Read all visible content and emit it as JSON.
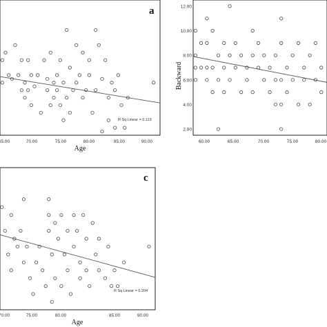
{
  "chart_data": [
    {
      "type": "scatter",
      "panel": "a",
      "xlabel": "Age",
      "ylabel": "",
      "x_ticks": [
        "65.00",
        "70.00",
        "75.00",
        "80.00",
        "85.00",
        "90.00"
      ],
      "y_ticks": [],
      "xlim": [
        64,
        91
      ],
      "ylim": [
        0,
        18
      ],
      "annotation": "R Sq Linear = 0.113",
      "fit_line": {
        "x": [
          64,
          91
        ],
        "y": [
          7.8,
          4.3
        ]
      },
      "points": [
        {
          "x": 65.5,
          "y": 16.5
        },
        {
          "x": 65.0,
          "y": 8.0
        },
        {
          "x": 66.0,
          "y": 8.0
        },
        {
          "x": 66.5,
          "y": 10.0
        },
        {
          "x": 66.5,
          "y": 7.0
        },
        {
          "x": 67.0,
          "y": 11.0
        },
        {
          "x": 67.5,
          "y": 8.0
        },
        {
          "x": 68.0,
          "y": 7.5
        },
        {
          "x": 68.5,
          "y": 12.0
        },
        {
          "x": 69.0,
          "y": 8.0
        },
        {
          "x": 69.5,
          "y": 10.0
        },
        {
          "x": 69.5,
          "y": 6.0
        },
        {
          "x": 70.0,
          "y": 7.0
        },
        {
          "x": 70.0,
          "y": 5.0
        },
        {
          "x": 70.5,
          "y": 10.0
        },
        {
          "x": 70.5,
          "y": 6.0
        },
        {
          "x": 71.0,
          "y": 8.0
        },
        {
          "x": 71.0,
          "y": 4.0
        },
        {
          "x": 71.5,
          "y": 6.5
        },
        {
          "x": 72.0,
          "y": 8.0
        },
        {
          "x": 72.5,
          "y": 3.0
        },
        {
          "x": 73.0,
          "y": 10.0
        },
        {
          "x": 73.5,
          "y": 7.5
        },
        {
          "x": 73.5,
          "y": 6.0
        },
        {
          "x": 74.0,
          "y": 11.0
        },
        {
          "x": 74.0,
          "y": 4.0
        },
        {
          "x": 74.5,
          "y": 7.0
        },
        {
          "x": 74.5,
          "y": 5.0
        },
        {
          "x": 75.0,
          "y": 8.0
        },
        {
          "x": 75.0,
          "y": 6.0
        },
        {
          "x": 75.5,
          "y": 10.0
        },
        {
          "x": 75.5,
          "y": 4.0
        },
        {
          "x": 76.0,
          "y": 7.0
        },
        {
          "x": 76.0,
          "y": 2.0
        },
        {
          "x": 76.5,
          "y": 14.0
        },
        {
          "x": 76.5,
          "y": 5.0
        },
        {
          "x": 77.0,
          "y": 9.0
        },
        {
          "x": 77.0,
          "y": 3.0
        },
        {
          "x": 77.5,
          "y": 6.0
        },
        {
          "x": 78.0,
          "y": 7.0
        },
        {
          "x": 78.0,
          "y": 12.0
        },
        {
          "x": 78.5,
          "y": 8.0
        },
        {
          "x": 79.0,
          "y": 5.0
        },
        {
          "x": 79.0,
          "y": 11.0
        },
        {
          "x": 79.5,
          "y": 6.0
        },
        {
          "x": 80.0,
          "y": 8.0
        },
        {
          "x": 80.0,
          "y": 10.0
        },
        {
          "x": 80.5,
          "y": 3.0
        },
        {
          "x": 81.0,
          "y": 14.0
        },
        {
          "x": 81.0,
          "y": 6.0
        },
        {
          "x": 81.5,
          "y": 12.0
        },
        {
          "x": 82.0,
          "y": 7.5
        },
        {
          "x": 82.0,
          "y": 0.5
        },
        {
          "x": 82.5,
          "y": 10.0
        },
        {
          "x": 83.0,
          "y": 5.0
        },
        {
          "x": 83.0,
          "y": 2.0
        },
        {
          "x": 83.5,
          "y": 7.0
        },
        {
          "x": 84.0,
          "y": 6.0
        },
        {
          "x": 84.0,
          "y": 1.0
        },
        {
          "x": 84.5,
          "y": 8.0
        },
        {
          "x": 85.0,
          "y": 4.0
        },
        {
          "x": 85.5,
          "y": 1.0
        },
        {
          "x": 86.0,
          "y": 5.0
        },
        {
          "x": 90.0,
          "y": 7.0
        }
      ]
    },
    {
      "type": "scatter",
      "panel": "b",
      "xlabel": "",
      "ylabel": "Backward",
      "x_ticks": [
        "60.00",
        "65.00",
        "70.00",
        "75.00",
        "80.00"
      ],
      "y_ticks": [
        "2.00",
        "4.00",
        "6.00",
        "8.00",
        "10.00",
        "12.00"
      ],
      "xlim": [
        59,
        83
      ],
      "ylim": [
        1.5,
        12.5
      ],
      "annotation": "",
      "fit_line": {
        "x": [
          59,
          83
        ],
        "y": [
          7.9,
          5.8
        ]
      },
      "points": [
        {
          "x": 60.0,
          "y": 6.0
        },
        {
          "x": 60.0,
          "y": 7.0
        },
        {
          "x": 60.0,
          "y": 8.0
        },
        {
          "x": 60.0,
          "y": 10.0
        },
        {
          "x": 61.0,
          "y": 7.0
        },
        {
          "x": 61.0,
          "y": 9.0
        },
        {
          "x": 62.0,
          "y": 6.0
        },
        {
          "x": 62.0,
          "y": 7.0
        },
        {
          "x": 62.0,
          "y": 9.0
        },
        {
          "x": 62.0,
          "y": 11.0
        },
        {
          "x": 63.0,
          "y": 5.0
        },
        {
          "x": 63.0,
          "y": 7.0
        },
        {
          "x": 63.0,
          "y": 10.0
        },
        {
          "x": 64.0,
          "y": 2.0
        },
        {
          "x": 64.0,
          "y": 6.0
        },
        {
          "x": 64.0,
          "y": 8.0
        },
        {
          "x": 65.0,
          "y": 5.0
        },
        {
          "x": 65.0,
          "y": 7.0
        },
        {
          "x": 65.0,
          "y": 9.0
        },
        {
          "x": 66.0,
          "y": 8.0
        },
        {
          "x": 66.0,
          "y": 12.0
        },
        {
          "x": 66.0,
          "y": 6.0
        },
        {
          "x": 67.0,
          "y": 7.0
        },
        {
          "x": 67.0,
          "y": 9.0
        },
        {
          "x": 68.0,
          "y": 5.0
        },
        {
          "x": 68.0,
          "y": 8.0
        },
        {
          "x": 69.0,
          "y": 7.0
        },
        {
          "x": 69.0,
          "y": 6.0
        },
        {
          "x": 70.0,
          "y": 10.0
        },
        {
          "x": 70.0,
          "y": 8.0
        },
        {
          "x": 70.0,
          "y": 5.0
        },
        {
          "x": 71.0,
          "y": 7.0
        },
        {
          "x": 71.0,
          "y": 9.0
        },
        {
          "x": 72.0,
          "y": 6.0
        },
        {
          "x": 72.0,
          "y": 8.0
        },
        {
          "x": 73.0,
          "y": 7.0
        },
        {
          "x": 73.0,
          "y": 5.0
        },
        {
          "x": 74.0,
          "y": 4.0
        },
        {
          "x": 74.0,
          "y": 6.0
        },
        {
          "x": 74.0,
          "y": 8.0
        },
        {
          "x": 75.0,
          "y": 11.0
        },
        {
          "x": 75.0,
          "y": 9.0
        },
        {
          "x": 75.0,
          "y": 6.0
        },
        {
          "x": 75.0,
          "y": 4.0
        },
        {
          "x": 75.0,
          "y": 2.0
        },
        {
          "x": 76.0,
          "y": 7.0
        },
        {
          "x": 76.0,
          "y": 5.0
        },
        {
          "x": 77.0,
          "y": 8.0
        },
        {
          "x": 77.0,
          "y": 6.0
        },
        {
          "x": 78.0,
          "y": 9.0
        },
        {
          "x": 78.0,
          "y": 4.0
        },
        {
          "x": 79.0,
          "y": 7.0
        },
        {
          "x": 79.0,
          "y": 6.0
        },
        {
          "x": 80.0,
          "y": 8.0
        },
        {
          "x": 80.0,
          "y": 4.0
        },
        {
          "x": 81.0,
          "y": 9.0
        },
        {
          "x": 81.0,
          "y": 6.0
        },
        {
          "x": 82.0,
          "y": 7.0
        },
        {
          "x": 82.0,
          "y": 5.0
        }
      ]
    },
    {
      "type": "scatter",
      "panel": "c",
      "xlabel": "Age",
      "ylabel": "",
      "x_ticks": [
        "70.00",
        "75.00",
        "80.00",
        "85.00",
        "90.00"
      ],
      "y_ticks": [],
      "xlim": [
        64,
        91
      ],
      "ylim": [
        0,
        18
      ],
      "annotation": "R Sq Linear = 0.204",
      "fit_line": {
        "x": [
          64,
          91
        ],
        "y": [
          9.5,
          4.1
        ]
      },
      "points": [
        {
          "x": 65.0,
          "y": 9.0
        },
        {
          "x": 65.5,
          "y": 11.0
        },
        {
          "x": 66.0,
          "y": 8.0
        },
        {
          "x": 66.0,
          "y": 6.0
        },
        {
          "x": 66.5,
          "y": 13.0
        },
        {
          "x": 67.0,
          "y": 10.0
        },
        {
          "x": 67.5,
          "y": 7.0
        },
        {
          "x": 68.0,
          "y": 12.0
        },
        {
          "x": 68.0,
          "y": 5.0
        },
        {
          "x": 68.5,
          "y": 9.0
        },
        {
          "x": 69.0,
          "y": 8.0
        },
        {
          "x": 69.5,
          "y": 10.0
        },
        {
          "x": 70.0,
          "y": 14.0
        },
        {
          "x": 70.0,
          "y": 6.0
        },
        {
          "x": 70.5,
          "y": 8.0
        },
        {
          "x": 71.0,
          "y": 4.0
        },
        {
          "x": 71.5,
          "y": 2.0
        },
        {
          "x": 72.0,
          "y": 6.0
        },
        {
          "x": 72.5,
          "y": 8.0
        },
        {
          "x": 73.0,
          "y": 5.0
        },
        {
          "x": 73.5,
          "y": 3.0
        },
        {
          "x": 74.0,
          "y": 14.0
        },
        {
          "x": 74.0,
          "y": 12.0
        },
        {
          "x": 74.0,
          "y": 10.0
        },
        {
          "x": 74.5,
          "y": 7.0
        },
        {
          "x": 74.5,
          "y": 1.0
        },
        {
          "x": 75.0,
          "y": 11.0
        },
        {
          "x": 75.0,
          "y": 4.0
        },
        {
          "x": 75.5,
          "y": 9.0
        },
        {
          "x": 76.0,
          "y": 12.0
        },
        {
          "x": 76.0,
          "y": 3.0
        },
        {
          "x": 76.5,
          "y": 7.0
        },
        {
          "x": 77.0,
          "y": 10.0
        },
        {
          "x": 77.0,
          "y": 5.0
        },
        {
          "x": 77.5,
          "y": 2.0
        },
        {
          "x": 78.0,
          "y": 12.0
        },
        {
          "x": 78.0,
          "y": 8.0
        },
        {
          "x": 78.5,
          "y": 10.0
        },
        {
          "x": 79.0,
          "y": 6.0
        },
        {
          "x": 79.0,
          "y": 4.0
        },
        {
          "x": 79.5,
          "y": 12.0
        },
        {
          "x": 80.0,
          "y": 9.0
        },
        {
          "x": 80.0,
          "y": 5.0
        },
        {
          "x": 80.5,
          "y": 3.0
        },
        {
          "x": 81.0,
          "y": 11.0
        },
        {
          "x": 81.5,
          "y": 7.0
        },
        {
          "x": 82.0,
          "y": 5.0
        },
        {
          "x": 82.0,
          "y": 9.0
        },
        {
          "x": 83.0,
          "y": 4.0
        },
        {
          "x": 83.5,
          "y": 8.0
        },
        {
          "x": 84.0,
          "y": 3.0
        },
        {
          "x": 84.5,
          "y": 5.0
        },
        {
          "x": 85.0,
          "y": 3.0
        },
        {
          "x": 86.0,
          "y": 6.0
        },
        {
          "x": 90.0,
          "y": 8.0
        }
      ]
    }
  ]
}
